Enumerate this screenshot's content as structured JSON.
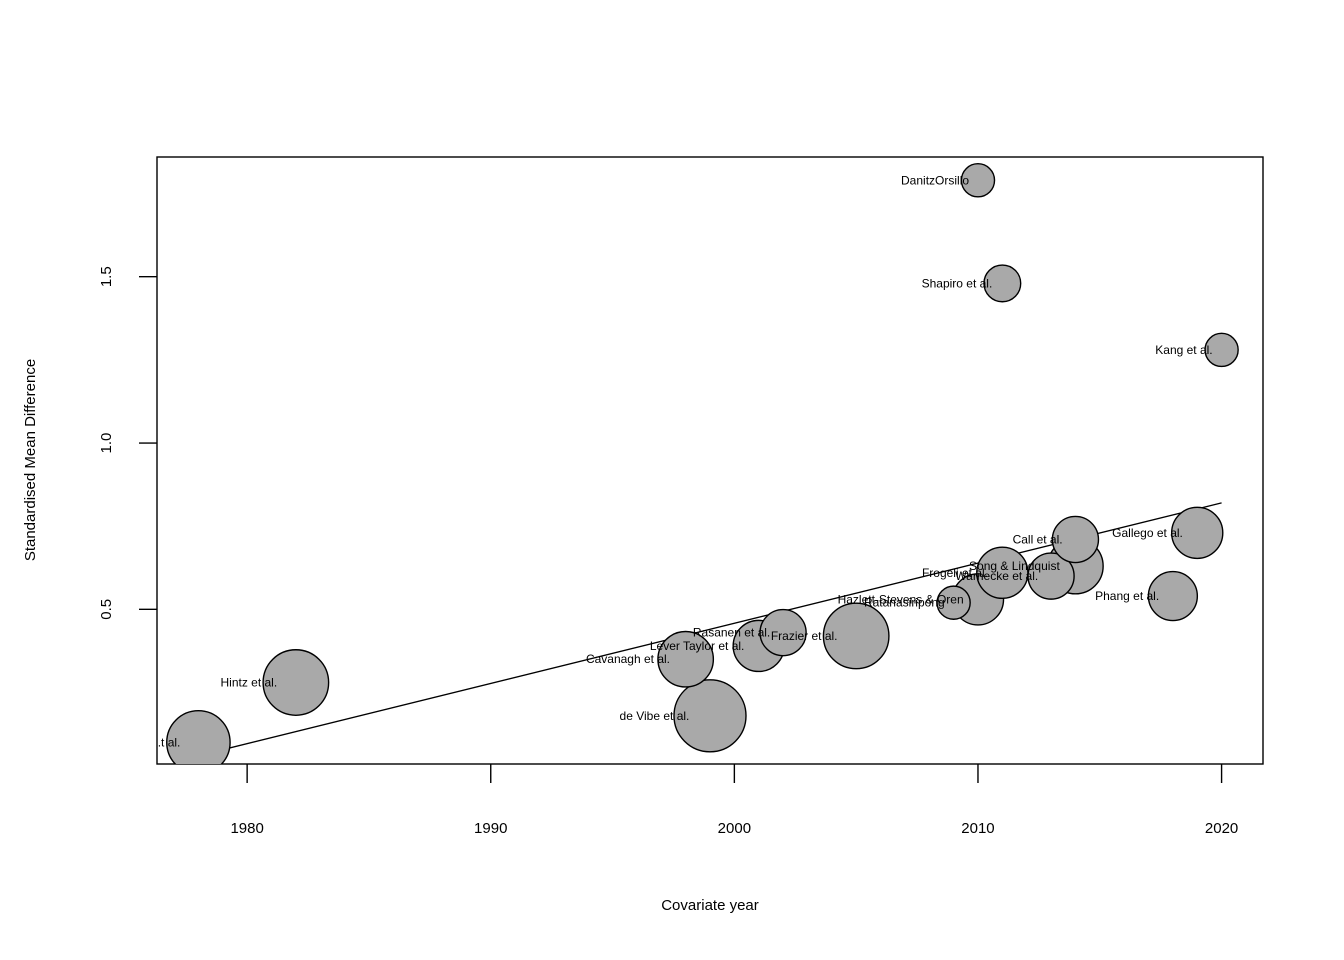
{
  "chart_data": {
    "type": "scatter",
    "subtype": "bubble-meta-regression",
    "title": "",
    "xlabel": "Covariate year",
    "ylabel": "Standardised Mean Difference",
    "xlim": [
      1976.3,
      2021.7
    ],
    "ylim": [
      0.035,
      1.86
    ],
    "xticks": [
      1980,
      1990,
      2000,
      2010,
      2020
    ],
    "yticks": [
      0.5,
      1.0,
      1.5
    ],
    "ytick_labels": [
      "0.5",
      "1.0",
      "1.5"
    ],
    "grid": false,
    "legend": "none",
    "point_color": "#a9a9a9",
    "regression_line": {
      "x": [
        1978,
        2020
      ],
      "y": [
        0.06,
        0.82
      ]
    },
    "points": [
      {
        "label": "...t al.",
        "x": 1978,
        "y": 0.1,
        "size": 0.88
      },
      {
        "label": "Hintz et al.",
        "x": 1982,
        "y": 0.28,
        "size": 0.91
      },
      {
        "label": "de Vibe et al.",
        "x": 1999,
        "y": 0.18,
        "size": 1.0
      },
      {
        "label": "Cavanagh et al.",
        "x": 1998,
        "y": 0.35,
        "size": 0.77
      },
      {
        "label": "Lever Taylor et al.",
        "x": 2001,
        "y": 0.39,
        "size": 0.71
      },
      {
        "label": "Rasanen et al.",
        "x": 2002,
        "y": 0.43,
        "size": 0.64
      },
      {
        "label": "Frazier et al.",
        "x": 2005,
        "y": 0.42,
        "size": 0.91
      },
      {
        "label": "Hazlett-Stevens & Oren",
        "x": 2010,
        "y": 0.53,
        "size": 0.71
      },
      {
        "label": "Ratanasiripong",
        "x": 2009,
        "y": 0.52,
        "size": 0.46
      },
      {
        "label": "Song & Lindquist",
        "x": 2014,
        "y": 0.63,
        "size": 0.77
      },
      {
        "label": "Warnecke et al.",
        "x": 2013,
        "y": 0.6,
        "size": 0.64
      },
      {
        "label": "Frogeli et al.",
        "x": 2011,
        "y": 0.61,
        "size": 0.71
      },
      {
        "label": "Call et al.",
        "x": 2014,
        "y": 0.71,
        "size": 0.64
      },
      {
        "label": "Gallego et al.",
        "x": 2019,
        "y": 0.73,
        "size": 0.71
      },
      {
        "label": "Phang et al.",
        "x": 2018,
        "y": 0.54,
        "size": 0.68
      },
      {
        "label": "Kang et al.",
        "x": 2020,
        "y": 1.28,
        "size": 0.46
      },
      {
        "label": "Shapiro et al.",
        "x": 2011,
        "y": 1.48,
        "size": 0.51
      },
      {
        "label": "DanitzOrsillo",
        "x": 2010,
        "y": 1.79,
        "size": 0.46
      }
    ]
  }
}
